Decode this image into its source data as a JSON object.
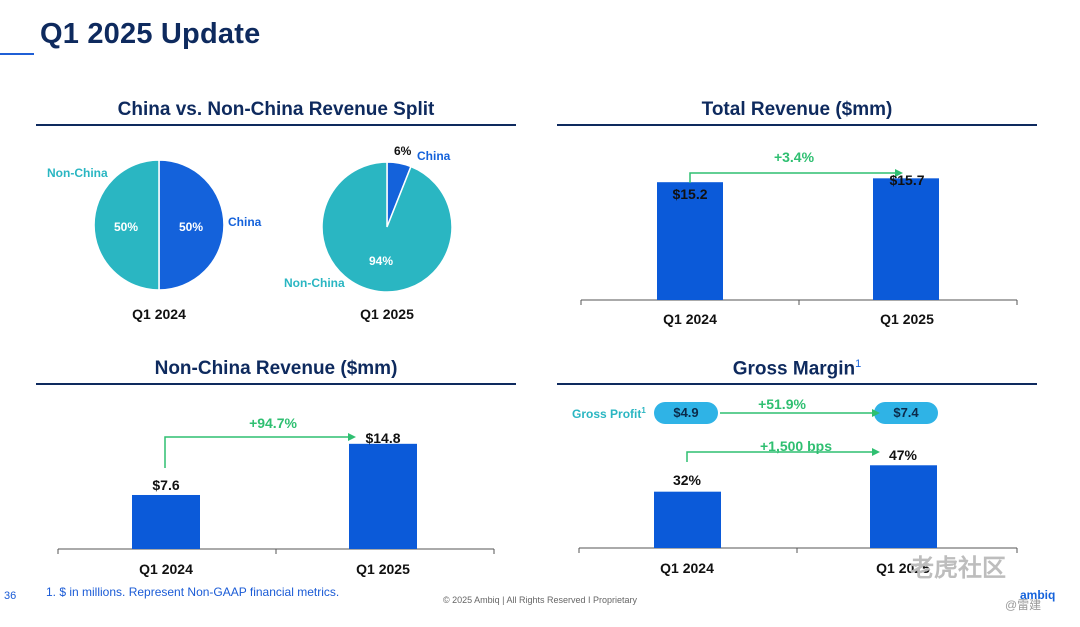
{
  "page": {
    "title": "Q1 2025 Update",
    "page_number": "36",
    "footnote": "1. $ in millions. Represent Non-GAAP financial metrics.",
    "copyright": "© 2025 Ambiq  |  All Rights Reserved I Proprietary",
    "logo": "ambiq",
    "watermark": "老虎社区",
    "watermark_user": "@雷建"
  },
  "colors": {
    "navy": "#0e2a5e",
    "blue": "#1462db",
    "teal": "#2ab6c2",
    "green": "#2fbf71",
    "pill": "#2fb3e6"
  },
  "chart_data": [
    {
      "type": "pie",
      "title": "China vs. Non-China Revenue Split",
      "pies": [
        {
          "caption": "Q1 2024",
          "slices": [
            {
              "name": "China",
              "value": 50,
              "label": "50%",
              "color": "#1462db"
            },
            {
              "name": "Non-China",
              "value": 50,
              "label": "50%",
              "color": "#2ab6c2"
            }
          ]
        },
        {
          "caption": "Q1 2025",
          "slices": [
            {
              "name": "China",
              "value": 6,
              "label": "6%",
              "color": "#1462db"
            },
            {
              "name": "Non-China",
              "value": 94,
              "label": "94%",
              "color": "#2ab6c2"
            }
          ]
        }
      ]
    },
    {
      "type": "bar",
      "title": "Total Revenue ($mm)",
      "categories": [
        "Q1 2024",
        "Q1 2025"
      ],
      "values": [
        15.2,
        15.7
      ],
      "value_labels": [
        "$15.2",
        "$15.7"
      ],
      "growth": "+3.4%",
      "ylim": [
        0,
        16
      ]
    },
    {
      "type": "bar",
      "title": "Non-China Revenue ($mm)",
      "categories": [
        "Q1 2024",
        "Q1 2025"
      ],
      "values": [
        7.6,
        14.8
      ],
      "value_labels": [
        "$7.6",
        "$14.8"
      ],
      "growth": "+94.7%",
      "ylim": [
        0,
        15.9
      ]
    },
    {
      "type": "bar",
      "title": "Gross Margin",
      "title_superscript": "1",
      "categories": [
        "Q1 2024",
        "Q1 2025"
      ],
      "values": [
        32,
        47
      ],
      "value_labels": [
        "32%",
        "47%"
      ],
      "growth": "+1,500 bps",
      "ylim": [
        0,
        50
      ],
      "gross_profit": {
        "label": "Gross Profit",
        "superscript": "1",
        "values": [
          "$4.9",
          "$7.4"
        ],
        "growth": "+51.9%"
      }
    }
  ]
}
